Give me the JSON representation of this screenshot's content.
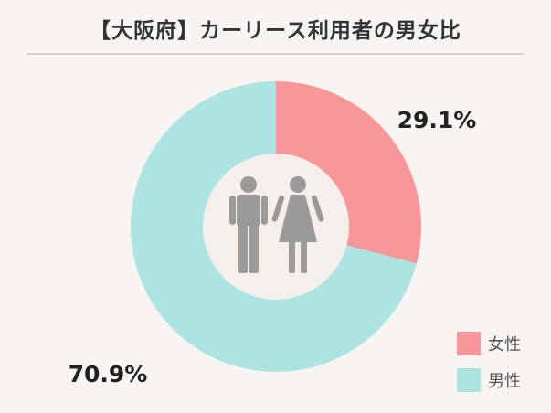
{
  "title": "【大阪府】カーリース利用者の男女比",
  "icons": [
    "male-figure-icon",
    "female-figure-icon"
  ],
  "colors": {
    "female": "#f7979a",
    "male": "#abe4e1",
    "icon": "#9a9a9a",
    "hole": "#f4efeb"
  },
  "chart_data": {
    "type": "pie",
    "style": "donut",
    "title": "【大阪府】カーリース利用者の男女比",
    "slices": [
      {
        "label": "女性",
        "value": 29.1,
        "display": "29.1%",
        "color": "#f7979a"
      },
      {
        "label": "男性",
        "value": 70.9,
        "display": "70.9%",
        "color": "#abe4e1"
      }
    ],
    "start": "12 o'clock",
    "direction": "clockwise",
    "legend_position": "bottom-right"
  }
}
